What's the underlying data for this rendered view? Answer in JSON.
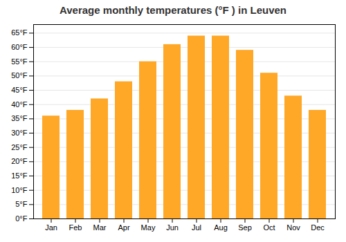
{
  "chart_data": {
    "type": "bar",
    "title": "Average monthly temperatures (°F ) in Leuven",
    "categories": [
      "Jan",
      "Feb",
      "Mar",
      "Apr",
      "May",
      "Jun",
      "Jul",
      "Aug",
      "Sep",
      "Oct",
      "Nov",
      "Dec"
    ],
    "values": [
      36,
      38,
      42,
      48,
      55,
      61,
      64,
      64,
      59,
      51,
      43,
      38
    ],
    "color": "#FFA726",
    "ylim": [
      0,
      68
    ],
    "yticks": [
      {
        "value": 0,
        "label": "0°F"
      },
      {
        "value": 5,
        "label": "5°F"
      },
      {
        "value": 10,
        "label": "10°F"
      },
      {
        "value": 15,
        "label": "15°F"
      },
      {
        "value": 20,
        "label": "20°F"
      },
      {
        "value": 25,
        "label": "25°F"
      },
      {
        "value": 30,
        "label": "30°F"
      },
      {
        "value": 35,
        "label": "35°F"
      },
      {
        "value": 40,
        "label": "40°F"
      },
      {
        "value": 45,
        "label": "45°F"
      },
      {
        "value": 50,
        "label": "50°F"
      },
      {
        "value": 55,
        "label": "55°F"
      },
      {
        "value": 60,
        "label": "60°F"
      },
      {
        "value": 65,
        "label": "65°F"
      }
    ],
    "grid": true
  }
}
